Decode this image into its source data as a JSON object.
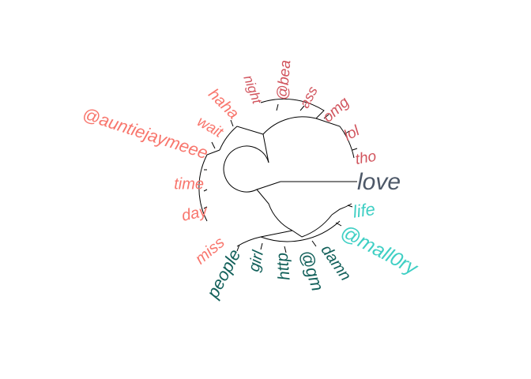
{
  "root": {
    "label": "love",
    "color": "#4d5868"
  },
  "clusters": [
    {
      "id": "salmon",
      "color": "#f8766d",
      "leaves": [
        "miss",
        "day",
        "time",
        "@auntiejaymeee",
        "wait",
        "haha"
      ]
    },
    {
      "id": "crimson",
      "color": "#d1545d",
      "leaves": [
        "night",
        "@bea",
        "ass",
        "omg",
        "lol",
        "tho"
      ]
    },
    {
      "id": "turquoise",
      "color": "#3fcfc4",
      "leaves": [
        "life",
        "@mall0ry"
      ]
    },
    {
      "id": "teal",
      "color": "#12605a",
      "leaves": [
        "people",
        "girl",
        "http",
        "@gm",
        "damn"
      ]
    }
  ]
}
